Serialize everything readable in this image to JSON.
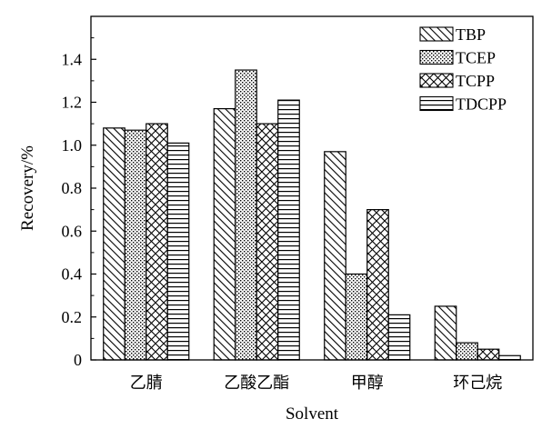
{
  "chart_data": {
    "type": "bar",
    "categories": [
      "乙腈",
      "乙酸乙酯",
      "甲醇",
      "环己烷"
    ],
    "series": [
      {
        "name": "TBP",
        "pattern": "diag",
        "values": [
          1.08,
          1.17,
          0.97,
          0.25
        ]
      },
      {
        "name": "TCEP",
        "pattern": "dots",
        "values": [
          1.07,
          1.35,
          0.4,
          0.08
        ]
      },
      {
        "name": "TCPP",
        "pattern": "cross",
        "values": [
          1.1,
          1.1,
          0.7,
          0.05
        ]
      },
      {
        "name": "TDCPP",
        "pattern": "hlines",
        "values": [
          1.01,
          1.21,
          0.21,
          0.02
        ]
      }
    ],
    "xlabel": "Solvent",
    "ylabel": "Recovery/%",
    "ylim": [
      0,
      1.6
    ],
    "yticks": [
      0,
      0.2,
      0.4,
      0.6,
      0.8,
      1.0,
      1.2,
      1.4
    ],
    "ytick_labels": [
      "0",
      "0.2",
      "0.4",
      "0.6",
      "0.8",
      "1.0",
      "1.2",
      "1.4"
    ],
    "grid": false,
    "legend_position": "top-right",
    "colors": {
      "bar_stroke": "#000000",
      "background": "#ffffff"
    }
  }
}
